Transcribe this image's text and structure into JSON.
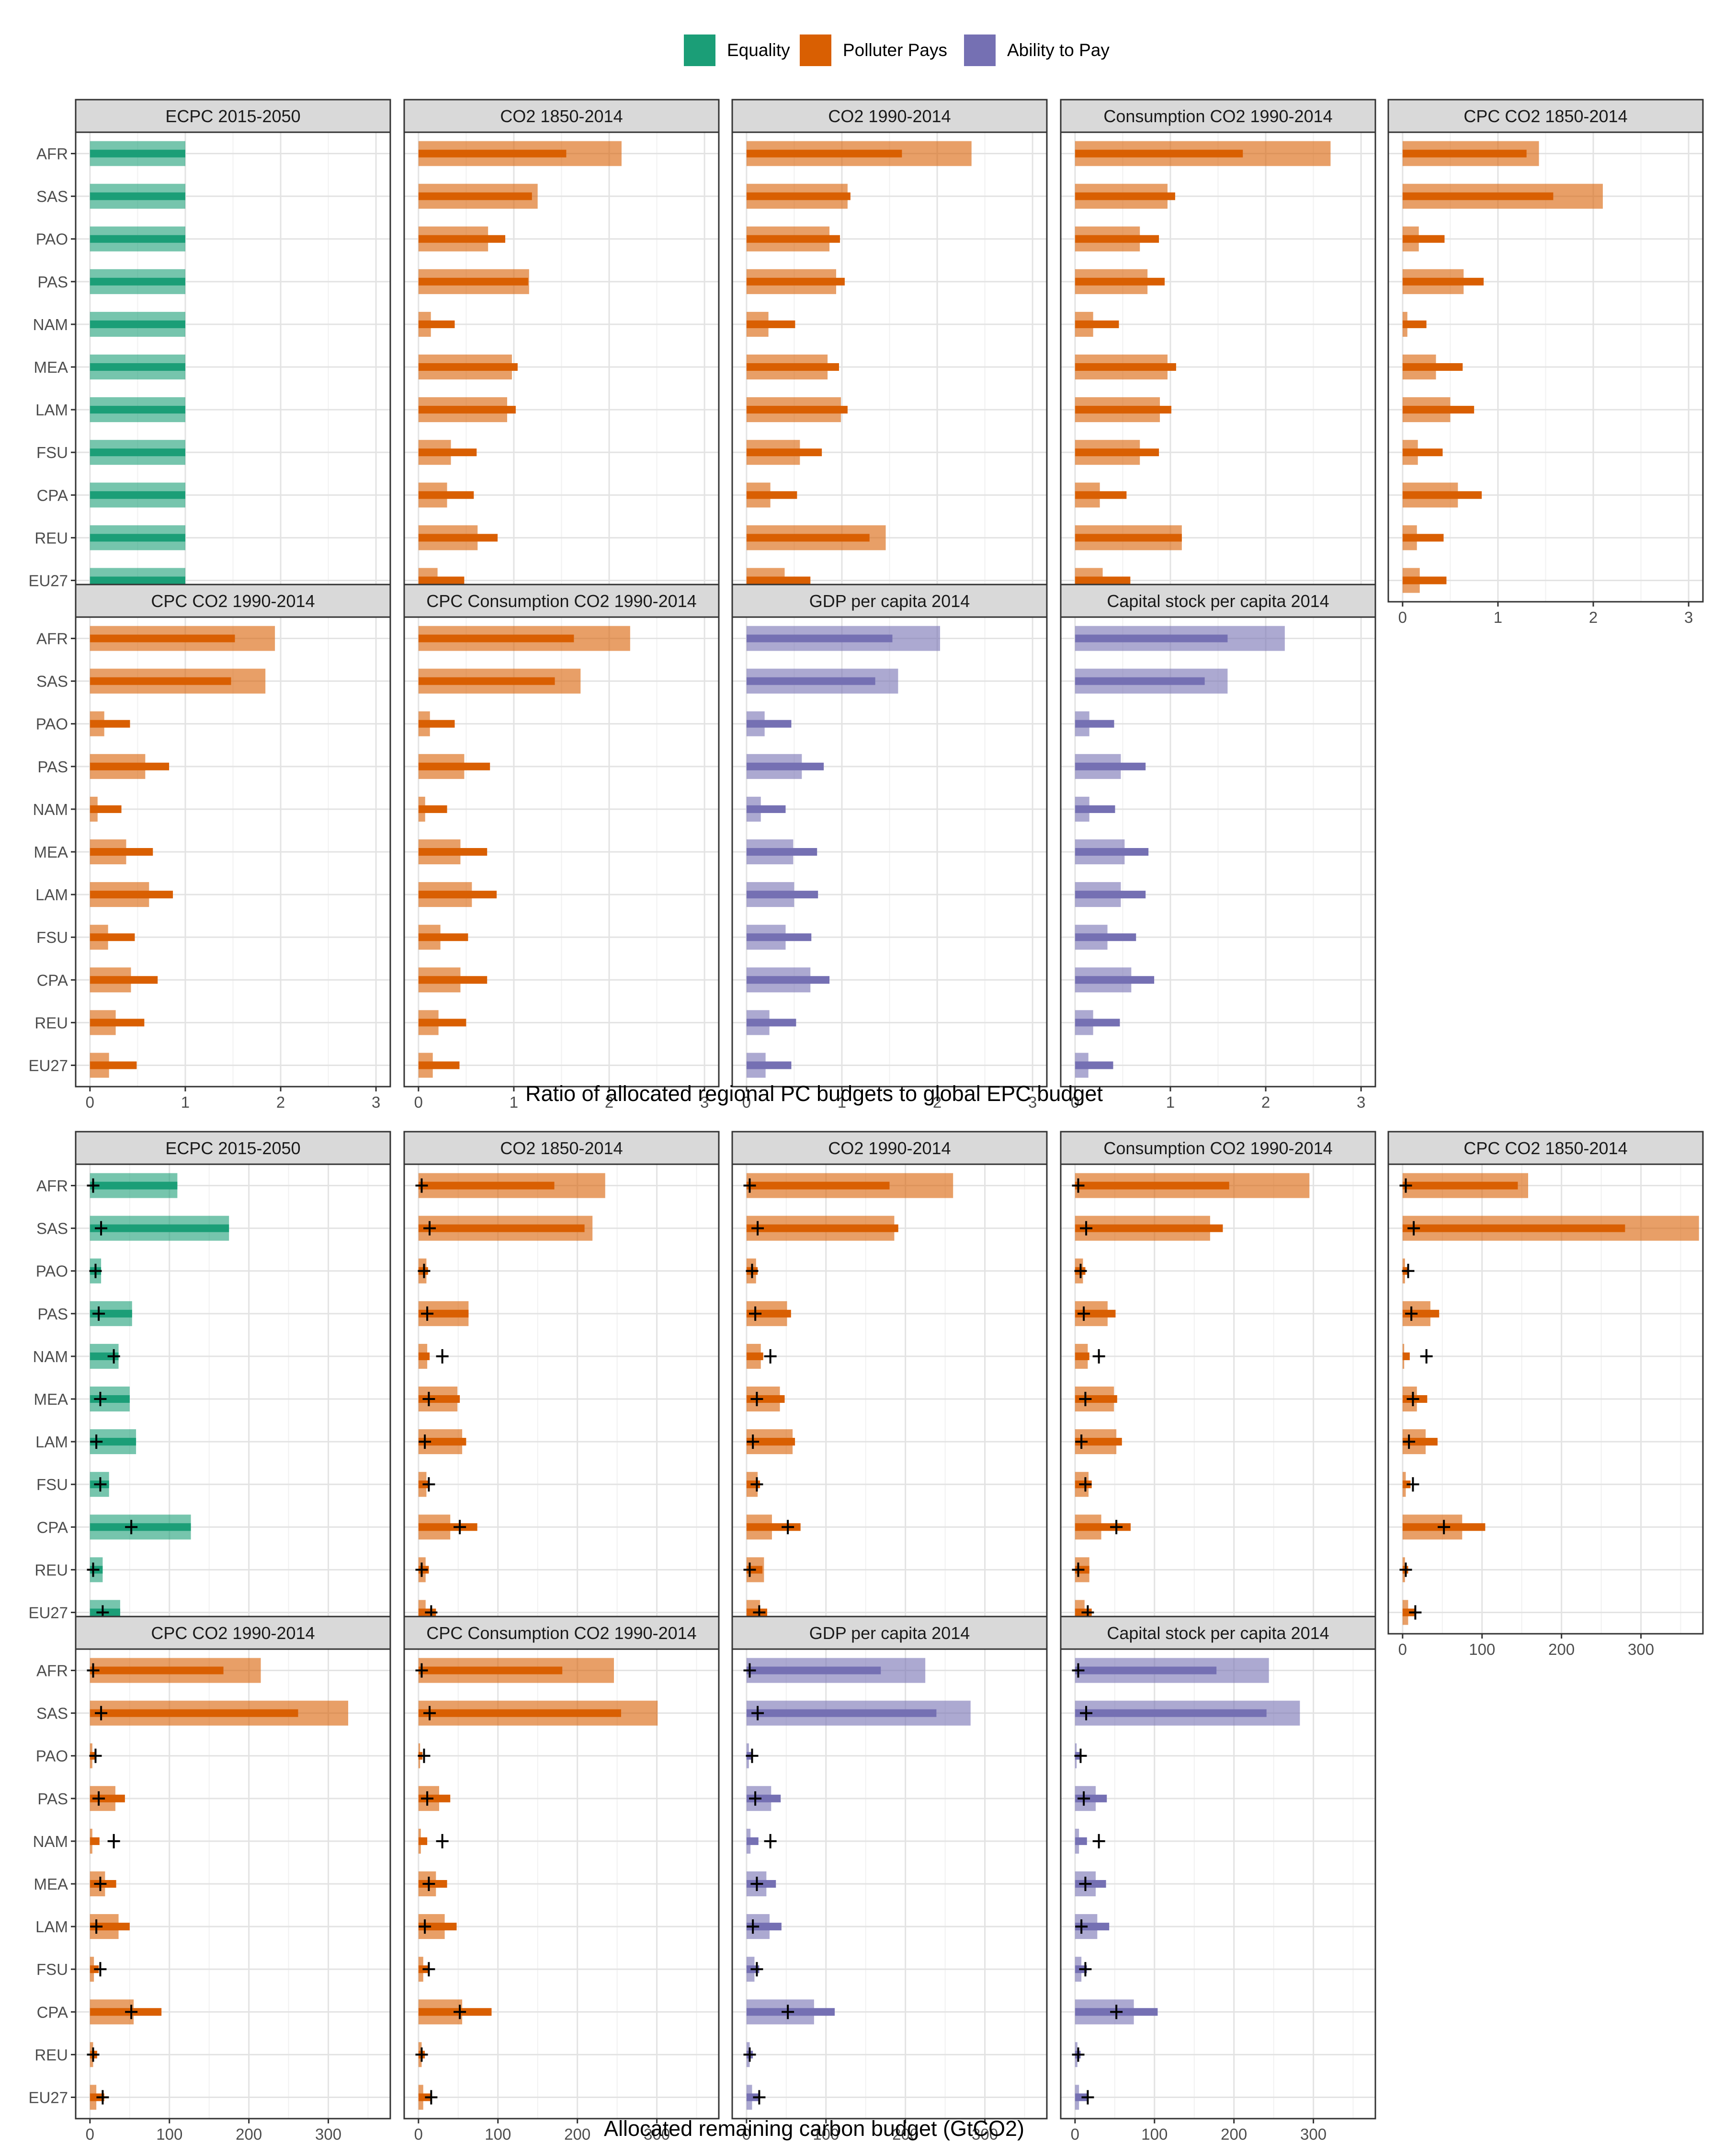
{
  "legend": [
    {
      "name": "Equality",
      "color": "#1b9e77"
    },
    {
      "name": "Polluter Pays",
      "color": "#d95f02"
    },
    {
      "name": "Ability to Pay",
      "color": "#7570b3"
    }
  ],
  "regions": [
    "AFR",
    "SAS",
    "PAO",
    "PAS",
    "NAM",
    "MEA",
    "LAM",
    "FSU",
    "CPA",
    "REU",
    "EU27"
  ],
  "chart_data": [
    {
      "type": "bar",
      "orientation": "horizontal",
      "xlabel": "Ratio of allocated regional PC budgets to global EPC budget",
      "xlim": [
        -0.15,
        3.15
      ],
      "xticks": [
        0,
        1,
        2,
        3
      ],
      "grid": true,
      "legend_position": "top",
      "panels": [
        {
          "title": "ECPC 2015-2050",
          "category": "Equality",
          "wide": [
            1,
            1,
            1,
            1,
            1,
            1,
            1,
            1,
            1,
            1,
            1
          ],
          "narrow": [
            1,
            1,
            1,
            1,
            1,
            1,
            1,
            1,
            1,
            1,
            1
          ]
        },
        {
          "title": "CO2 1850-2014",
          "category": "Polluter Pays",
          "wide": [
            2.13,
            1.25,
            0.73,
            1.16,
            0.13,
            0.98,
            0.93,
            0.34,
            0.3,
            0.62,
            0.2
          ],
          "narrow": [
            1.55,
            1.19,
            0.91,
            1.15,
            0.38,
            1.04,
            1.02,
            0.61,
            0.58,
            0.83,
            0.48
          ]
        },
        {
          "title": "CO2 1990-2014",
          "category": "Polluter Pays",
          "wide": [
            2.36,
            1.06,
            0.87,
            0.94,
            0.23,
            0.85,
            0.99,
            0.56,
            0.25,
            1.46,
            0.4
          ],
          "narrow": [
            1.63,
            1.09,
            0.98,
            1.03,
            0.51,
            0.97,
            1.06,
            0.79,
            0.53,
            1.29,
            0.67
          ]
        },
        {
          "title": "Consumption CO2 1990-2014",
          "category": "Polluter Pays",
          "wide": [
            2.68,
            0.97,
            0.68,
            0.76,
            0.19,
            0.97,
            0.89,
            0.68,
            0.26,
            1.12,
            0.29
          ],
          "narrow": [
            1.76,
            1.05,
            0.88,
            0.94,
            0.46,
            1.06,
            1.01,
            0.88,
            0.54,
            1.12,
            0.58
          ]
        },
        {
          "title": "CPC CO2 1850-2014",
          "category": "Polluter Pays",
          "wide": [
            1.43,
            2.1,
            0.17,
            0.64,
            0.05,
            0.35,
            0.5,
            0.16,
            0.58,
            0.15,
            0.18
          ],
          "narrow": [
            1.3,
            1.58,
            0.44,
            0.85,
            0.25,
            0.63,
            0.75,
            0.42,
            0.83,
            0.43,
            0.46
          ]
        },
        {
          "title": "CPC CO2 1990-2014",
          "category": "Polluter Pays",
          "wide": [
            1.94,
            1.84,
            0.15,
            0.58,
            0.08,
            0.38,
            0.62,
            0.19,
            0.43,
            0.27,
            0.2
          ],
          "narrow": [
            1.52,
            1.48,
            0.42,
            0.83,
            0.33,
            0.66,
            0.87,
            0.47,
            0.71,
            0.57,
            0.49
          ]
        },
        {
          "title": "CPC Consumption CO2 1990-2014",
          "category": "Polluter Pays",
          "wide": [
            2.22,
            1.7,
            0.12,
            0.48,
            0.07,
            0.44,
            0.56,
            0.23,
            0.44,
            0.21,
            0.15
          ],
          "narrow": [
            1.63,
            1.43,
            0.38,
            0.75,
            0.3,
            0.72,
            0.82,
            0.52,
            0.72,
            0.5,
            0.43
          ]
        },
        {
          "title": "GDP per capita 2014",
          "category": "Ability to Pay",
          "wide": [
            2.03,
            1.59,
            0.19,
            0.58,
            0.15,
            0.49,
            0.5,
            0.41,
            0.67,
            0.24,
            0.2
          ],
          "narrow": [
            1.53,
            1.35,
            0.47,
            0.81,
            0.41,
            0.74,
            0.75,
            0.68,
            0.87,
            0.52,
            0.47
          ]
        },
        {
          "title": "Capital stock per capita 2014",
          "category": "Ability to Pay",
          "wide": [
            2.2,
            1.6,
            0.15,
            0.48,
            0.15,
            0.52,
            0.48,
            0.34,
            0.59,
            0.19,
            0.14
          ],
          "narrow": [
            1.6,
            1.36,
            0.41,
            0.74,
            0.42,
            0.77,
            0.74,
            0.64,
            0.83,
            0.47,
            0.4
          ]
        }
      ]
    },
    {
      "type": "bar",
      "orientation": "horizontal",
      "xlabel": "Allocated remaining carbon budget (GtCO2)",
      "xlim": [
        -18,
        378
      ],
      "xticks": [
        0,
        100,
        200,
        300
      ],
      "grid": true,
      "legend_position": "top",
      "marker": "+",
      "panels": [
        {
          "title": "ECPC 2015-2050",
          "category": "Equality",
          "wide": [
            110,
            175,
            14,
            53,
            36,
            50,
            58,
            24,
            127,
            16,
            38
          ],
          "narrow": [
            110,
            175,
            14,
            53,
            36,
            50,
            58,
            24,
            127,
            16,
            38
          ],
          "marker_x": [
            4,
            14,
            7,
            11,
            30,
            13,
            8,
            13,
            52,
            4,
            16
          ]
        },
        {
          "title": "CO2 1850-2014",
          "category": "Polluter Pays",
          "wide": [
            235,
            219,
            10,
            63,
            11,
            49,
            55,
            10,
            40,
            9,
            9
          ],
          "narrow": [
            171,
            209,
            12,
            63,
            14,
            52,
            60,
            14,
            74,
            13,
            22
          ],
          "marker_x": [
            4,
            14,
            7,
            11,
            30,
            13,
            8,
            13,
            52,
            4,
            16
          ]
        },
        {
          "title": "CO2 1990-2014",
          "category": "Polluter Pays",
          "wide": [
            260,
            186,
            12,
            51,
            18,
            42,
            58,
            14,
            32,
            22,
            17
          ],
          "narrow": [
            180,
            191,
            14,
            56,
            21,
            48,
            61,
            17,
            68,
            20,
            26
          ],
          "marker_x": [
            4,
            14,
            7,
            11,
            30,
            13,
            8,
            13,
            52,
            4,
            16
          ]
        },
        {
          "title": "Consumption CO2 1990-2014",
          "category": "Polluter Pays",
          "wide": [
            295,
            170,
            10,
            41,
            16,
            49,
            52,
            17,
            33,
            18,
            12
          ],
          "narrow": [
            194,
            186,
            13,
            51,
            18,
            53,
            59,
            21,
            70,
            18,
            21
          ],
          "marker_x": [
            4,
            14,
            7,
            11,
            30,
            13,
            8,
            13,
            52,
            4,
            16
          ]
        },
        {
          "title": "CPC CO2 1850-2014",
          "category": "Polluter Pays",
          "wide": [
            158,
            373,
            3,
            35,
            2,
            18,
            29,
            4,
            75,
            3,
            7
          ],
          "narrow": [
            145,
            280,
            6,
            46,
            9,
            31,
            44,
            10,
            104,
            7,
            17
          ],
          "marker_x": [
            4,
            14,
            7,
            11,
            30,
            13,
            8,
            13,
            52,
            4,
            16
          ]
        },
        {
          "title": "CPC CO2 1990-2014",
          "category": "Polluter Pays",
          "wide": [
            215,
            325,
            3,
            32,
            3,
            19,
            36,
            5,
            55,
            4,
            8
          ],
          "narrow": [
            168,
            262,
            6,
            44,
            12,
            33,
            50,
            11,
            90,
            9,
            18
          ],
          "marker_x": [
            4,
            14,
            7,
            11,
            30,
            13,
            8,
            13,
            52,
            4,
            16
          ]
        },
        {
          "title": "CPC Consumption CO2 1990-2014",
          "category": "Polluter Pays",
          "wide": [
            246,
            301,
            2,
            26,
            3,
            22,
            33,
            6,
            55,
            4,
            6
          ],
          "narrow": [
            181,
            255,
            5,
            40,
            11,
            36,
            48,
            12,
            92,
            8,
            16
          ],
          "marker_x": [
            4,
            14,
            7,
            11,
            30,
            13,
            8,
            13,
            52,
            4,
            16
          ]
        },
        {
          "title": "GDP per capita 2014",
          "category": "Ability to Pay",
          "wide": [
            225,
            282,
            3,
            31,
            5,
            25,
            29,
            10,
            85,
            4,
            7
          ],
          "narrow": [
            169,
            239,
            7,
            43,
            15,
            37,
            44,
            16,
            111,
            8,
            17
          ],
          "marker_x": [
            4,
            14,
            7,
            11,
            30,
            13,
            8,
            13,
            52,
            4,
            16
          ]
        },
        {
          "title": "Capital stock per capita 2014",
          "category": "Ability to Pay",
          "wide": [
            244,
            283,
            2,
            26,
            5,
            26,
            28,
            8,
            74,
            3,
            5
          ],
          "narrow": [
            178,
            241,
            6,
            40,
            15,
            39,
            43,
            15,
            104,
            7,
            15
          ],
          "marker_x": [
            4,
            14,
            7,
            11,
            30,
            13,
            8,
            13,
            52,
            4,
            16
          ]
        }
      ]
    }
  ]
}
